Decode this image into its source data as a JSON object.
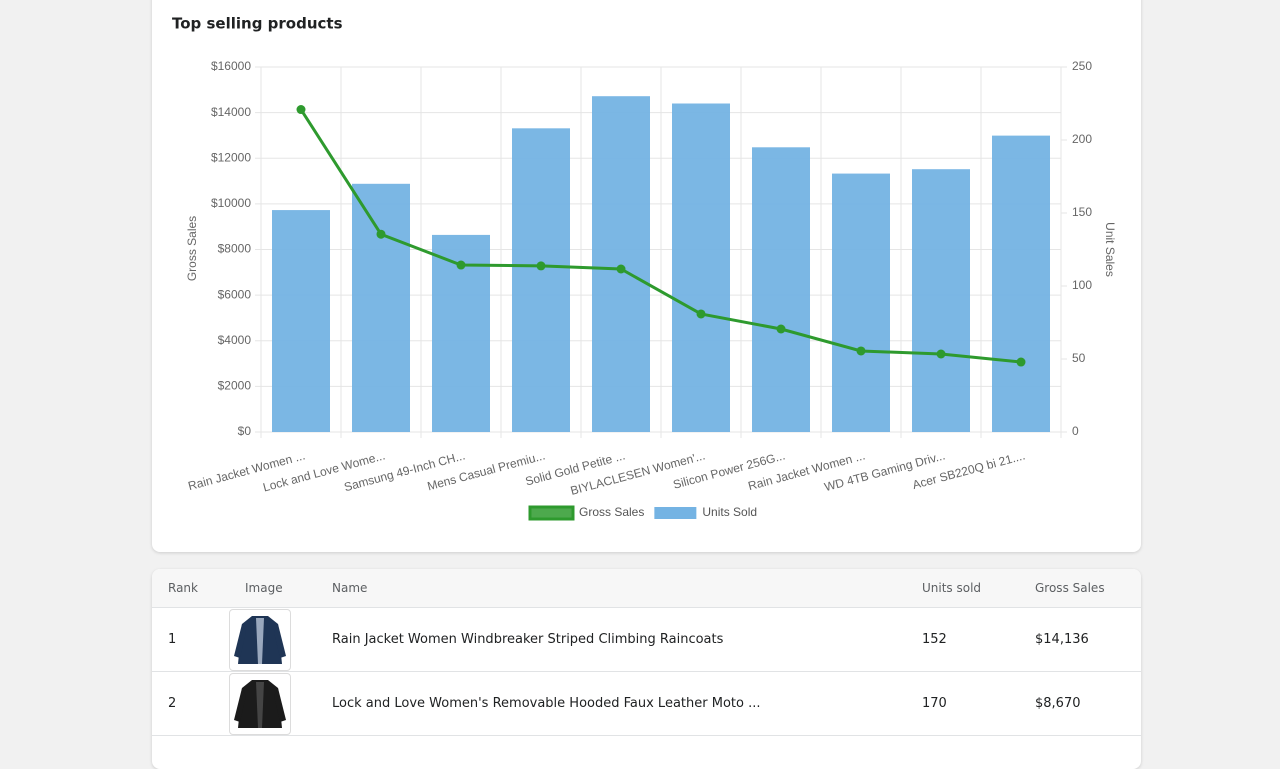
{
  "chart_data": {
    "type": "bar_line",
    "title": "Top selling products",
    "categories": [
      "Rain Jacket Women ...",
      "Lock and Love Wome...",
      "Samsung 49-Inch CH...",
      "Mens Casual Premiu...",
      "Solid Gold Petite ...",
      "BIYLACLESEN Women'...",
      "Silicon Power 256G...",
      "Rain Jacket Women ...",
      "WD 4TB Gaming Driv...",
      "Acer SB220Q bi 21...."
    ],
    "series": [
      {
        "name": "Gross Sales",
        "color": "#2e9a2e",
        "type": "line",
        "values": [
          14136,
          8670,
          7320,
          7280,
          7145,
          5173,
          4515,
          3551,
          3419,
          3068
        ]
      },
      {
        "name": "Units Sold",
        "color": "#74b3e3",
        "type": "bar",
        "axis": "y2",
        "values": [
          152,
          170,
          135,
          208,
          230,
          225,
          195,
          177,
          180,
          203
        ]
      }
    ],
    "ylabel": "Gross Sales",
    "y2label": "Unit Sales",
    "ylim": [
      0,
      16000
    ],
    "yticks": [
      {
        "value": 0,
        "label": "$0"
      },
      {
        "value": 2000,
        "label": "$2000"
      },
      {
        "value": 4000,
        "label": "$4000"
      },
      {
        "value": 6000,
        "label": "$6000"
      },
      {
        "value": 8000,
        "label": "$8000"
      },
      {
        "value": 10000,
        "label": "$10000"
      },
      {
        "value": 12000,
        "label": "$12000"
      },
      {
        "value": 14000,
        "label": "$14000"
      },
      {
        "value": 16000,
        "label": "$16000"
      }
    ],
    "y2lim": [
      0,
      250
    ],
    "y2ticks": [
      0,
      50,
      100,
      150,
      200,
      250
    ],
    "grid": true,
    "legend": "bottom"
  },
  "table": {
    "headers": [
      "Rank",
      "Image",
      "Name",
      "Units sold",
      "Gross Sales"
    ],
    "rows": [
      [
        1,
        "Rain Jacket Women Windbreaker Striped Climbing Raincoats",
        152,
        "$14,136"
      ],
      [
        2,
        "Lock and Love Women's Removable Hooded Faux Leather Moto ...",
        170,
        "$8,670"
      ]
    ]
  }
}
